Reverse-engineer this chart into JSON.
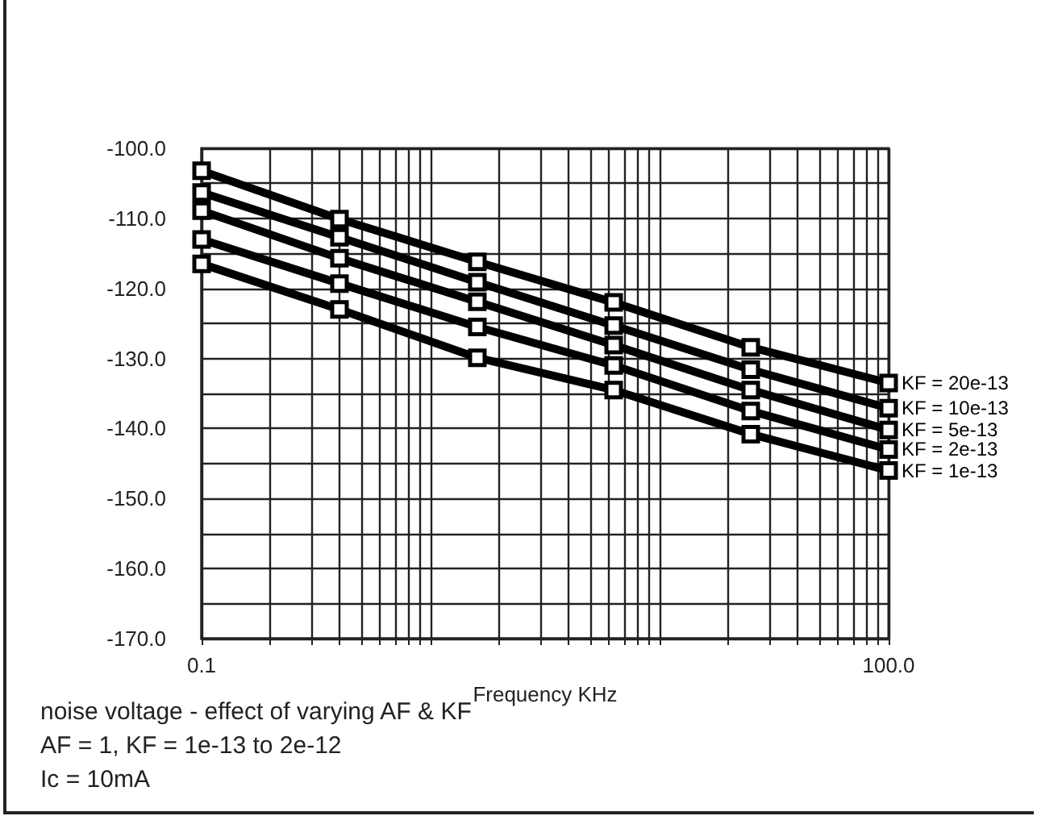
{
  "chart_data": {
    "type": "line",
    "xlabel": "Frequency KHz",
    "annotations": [
      "noise voltage - effect of varying AF & KF",
      "AF = 1, KF = 1e-13 to 2e-12",
      "Ic = 10mA"
    ],
    "x": [
      0.1,
      0.4,
      1.6,
      6.3,
      25,
      100
    ],
    "series": [
      {
        "name": "KF = 20e-13",
        "color": "#000000",
        "values": [
          -103.2,
          -110.1,
          -116.2,
          -122.0,
          -128.4,
          -133.5
        ]
      },
      {
        "name": "KF = 10e-13",
        "color": "#000000",
        "values": [
          -106.3,
          -112.7,
          -119.1,
          -125.3,
          -131.6,
          -137.1
        ]
      },
      {
        "name": "KF = 5e-13",
        "color": "#000000",
        "values": [
          -108.9,
          -115.7,
          -121.9,
          -128.1,
          -134.5,
          -140.2
        ]
      },
      {
        "name": "KF = 2e-13",
        "color": "#000000",
        "values": [
          -113.0,
          -119.3,
          -125.5,
          -131.0,
          -137.5,
          -143.0
        ]
      },
      {
        "name": "KF = 1e-13",
        "color": "#000000",
        "values": [
          -116.5,
          -123.0,
          -129.9,
          -134.5,
          -140.8,
          -146.0
        ]
      }
    ],
    "log": "x",
    "xlim": [
      0.1,
      100
    ],
    "xticks": [
      {
        "value": 0.1,
        "label": "0.1"
      },
      {
        "value": 0.2,
        "label": null
      },
      {
        "value": 0.3,
        "label": null
      },
      {
        "value": 0.4,
        "label": null
      },
      {
        "value": 0.5,
        "label": null
      },
      {
        "value": 0.6,
        "label": null
      },
      {
        "value": 0.7,
        "label": null
      },
      {
        "value": 0.8,
        "label": null
      },
      {
        "value": 0.9,
        "label": null
      },
      {
        "value": 1,
        "label": null
      },
      {
        "value": 2,
        "label": null
      },
      {
        "value": 3,
        "label": null
      },
      {
        "value": 4,
        "label": null
      },
      {
        "value": 5,
        "label": null
      },
      {
        "value": 6,
        "label": null
      },
      {
        "value": 7,
        "label": null
      },
      {
        "value": 8,
        "label": null
      },
      {
        "value": 9,
        "label": null
      },
      {
        "value": 10,
        "label": null
      },
      {
        "value": 20,
        "label": null
      },
      {
        "value": 30,
        "label": null
      },
      {
        "value": 40,
        "label": null
      },
      {
        "value": 50,
        "label": null
      },
      {
        "value": 60,
        "label": null
      },
      {
        "value": 70,
        "label": null
      },
      {
        "value": 80,
        "label": null
      },
      {
        "value": 90,
        "label": null
      },
      {
        "value": 100,
        "label": "100.0"
      }
    ],
    "ylim": [
      -170,
      -100
    ],
    "yticks": [
      {
        "value": -170,
        "label": "-170.0"
      },
      {
        "value": -165,
        "label": null
      },
      {
        "value": -160,
        "label": "-160.0"
      },
      {
        "value": -155,
        "label": null
      },
      {
        "value": -150,
        "label": "-150.0"
      },
      {
        "value": -145,
        "label": null
      },
      {
        "value": -140,
        "label": "-140.0"
      },
      {
        "value": -135,
        "label": null
      },
      {
        "value": -130,
        "label": "-130.0"
      },
      {
        "value": -125,
        "label": null
      },
      {
        "value": -120,
        "label": "-120.0"
      },
      {
        "value": -115,
        "label": null
      },
      {
        "value": -110,
        "label": "-110.0"
      },
      {
        "value": -105,
        "label": null
      },
      {
        "value": -100,
        "label": "-100.0"
      }
    ],
    "grid": true,
    "legend": false,
    "marker": "square",
    "line_style": "solid"
  }
}
